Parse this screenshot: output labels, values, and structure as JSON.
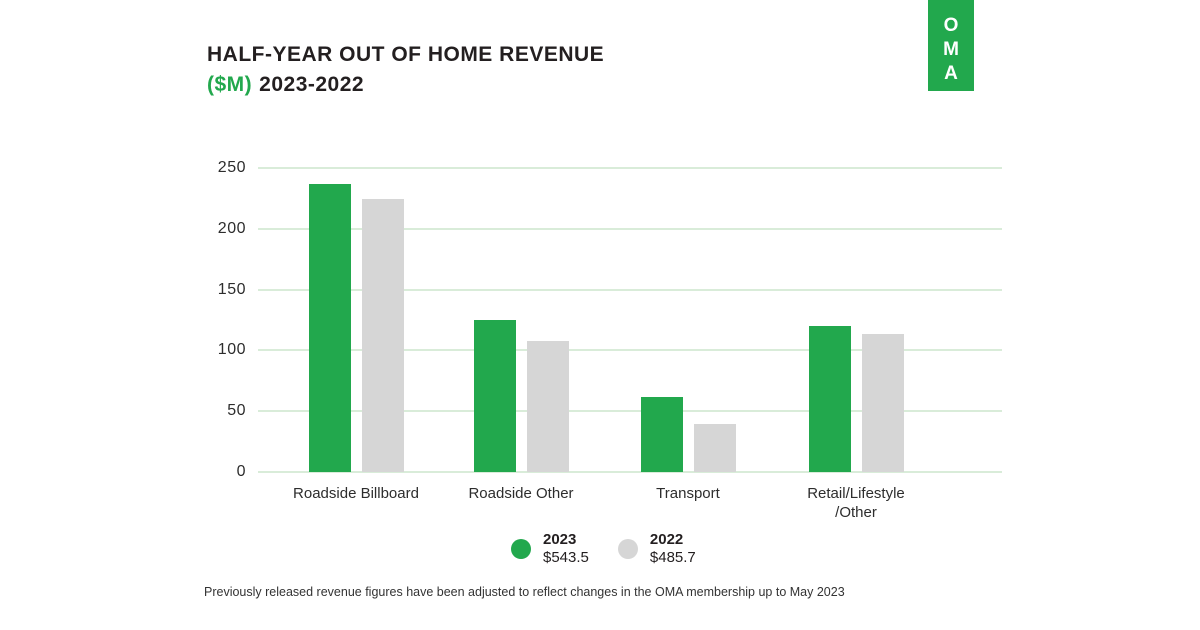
{
  "header": {
    "title_line1": "HALF-YEAR OUT OF HOME REVENUE",
    "title_unit": "($M)",
    "title_years": "2023-2022"
  },
  "logo": {
    "letters": [
      "O",
      "M",
      "A"
    ]
  },
  "colors": {
    "brand_green": "#22a84d",
    "bar_gray": "#d6d6d6",
    "gridline_green": "#d9ecd9",
    "title_dark": "#231f20"
  },
  "chart_data": {
    "type": "bar",
    "title": "HALF-YEAR OUT OF HOME REVENUE ($M) 2023-2022",
    "categories": [
      "Roadside Billboard",
      "Roadside Other",
      "Transport",
      "Retail/Lifestyle\n/Other"
    ],
    "series": [
      {
        "name": "2023",
        "total": "$543.5",
        "color": "#22a84d",
        "values": [
          236.9,
          125.3,
          61.6,
          119.7
        ]
      },
      {
        "name": "2022",
        "total": "$485.7",
        "color": "#d6d6d6",
        "values": [
          224.9,
          107.5,
          39.6,
          113.7
        ]
      }
    ],
    "ylabel": "",
    "ylim": [
      0,
      250
    ],
    "yticks": [
      0,
      50,
      100,
      150,
      200,
      250
    ],
    "grid": true,
    "legend_position": "bottom-center"
  },
  "footer": {
    "note": "Previously released revenue figures have been adjusted to reflect changes in the OMA membership up to May 2023"
  }
}
